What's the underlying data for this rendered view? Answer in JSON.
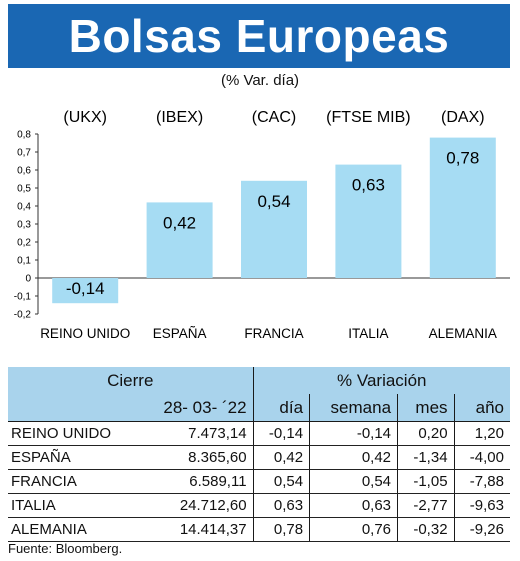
{
  "title": "Bolsas Europeas",
  "subtitle": "(% Var. día)",
  "source": "Fuente: Bloomberg.",
  "colors": {
    "header_band": "#1a67b3",
    "bar_fill": "#a6dcf3",
    "table_header": "#a9d3ec"
  },
  "chart_data": {
    "type": "bar",
    "categories": [
      "REINO UNIDO",
      "ESPAÑA",
      "FRANCIA",
      "ITALIA",
      "ALEMANIA"
    ],
    "indices": [
      "(UKX)",
      "(IBEX)",
      "(CAC)",
      "(FTSE MIB)",
      "(DAX)"
    ],
    "values": [
      -0.14,
      0.42,
      0.54,
      0.63,
      0.78
    ],
    "value_labels": [
      "-0,14",
      "0,42",
      "0,54",
      "0,63",
      "0,78"
    ],
    "ylim": [
      -0.2,
      0.8
    ],
    "yticks": [
      -0.2,
      -0.1,
      0,
      0.1,
      0.2,
      0.3,
      0.4,
      0.5,
      0.6,
      0.7,
      0.8
    ],
    "ytick_labels": [
      "-0,2",
      "-0,1",
      "0",
      "0,1",
      "0,2",
      "0,3",
      "0,4",
      "0,5",
      "0,6",
      "0,7",
      "0,8"
    ],
    "grid": false,
    "title": "Bolsas Europeas",
    "xlabel": "",
    "ylabel": ""
  },
  "table": {
    "group_headers": {
      "cierre": "Cierre",
      "variacion": "% Variación"
    },
    "columns": {
      "cierre_date": "28- 03- ´22",
      "dia": "día",
      "semana": "semana",
      "mes": "mes",
      "ano": "año"
    },
    "rows": [
      {
        "name": "REINO UNIDO",
        "cierre": "7.473,14",
        "dia": "-0,14",
        "semana": "-0,14",
        "mes": "0,20",
        "ano": "1,20"
      },
      {
        "name": "ESPAÑA",
        "cierre": "8.365,60",
        "dia": "0,42",
        "semana": "0,42",
        "mes": "-1,34",
        "ano": "-4,00"
      },
      {
        "name": "FRANCIA",
        "cierre": "6.589,11",
        "dia": "0,54",
        "semana": "0,54",
        "mes": "-1,05",
        "ano": "-7,88"
      },
      {
        "name": "ITALIA",
        "cierre": "24.712,60",
        "dia": "0,63",
        "semana": "0,63",
        "mes": "-2,77",
        "ano": "-9,63"
      },
      {
        "name": "ALEMANIA",
        "cierre": "14.414,37",
        "dia": "0,78",
        "semana": "0,76",
        "mes": "-0,32",
        "ano": "-9,26"
      }
    ]
  }
}
